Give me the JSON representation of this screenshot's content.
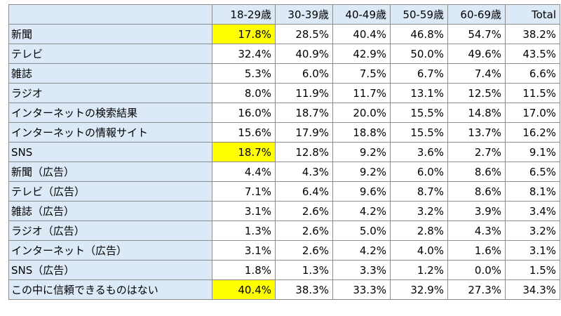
{
  "chart_data": {
    "type": "table",
    "columns": [
      "18-29歳",
      "30-39歳",
      "40-49歳",
      "50-59歳",
      "60-69歳",
      "Total"
    ],
    "highlight_color": "#ffff00",
    "header_color": "#dce9f6",
    "rows": [
      {
        "label": "新聞",
        "values": [
          "17.8%",
          "28.5%",
          "40.4%",
          "46.8%",
          "54.7%",
          "38.2%"
        ],
        "highlight": [
          0
        ]
      },
      {
        "label": "テレビ",
        "values": [
          "32.4%",
          "40.9%",
          "42.9%",
          "50.0%",
          "49.6%",
          "43.5%"
        ],
        "highlight": []
      },
      {
        "label": "雑誌",
        "values": [
          "5.3%",
          "6.0%",
          "7.5%",
          "6.7%",
          "7.4%",
          "6.6%"
        ],
        "highlight": []
      },
      {
        "label": "ラジオ",
        "values": [
          "8.0%",
          "11.9%",
          "11.7%",
          "13.1%",
          "12.5%",
          "11.5%"
        ],
        "highlight": []
      },
      {
        "label": "インターネットの検索結果",
        "values": [
          "16.0%",
          "18.7%",
          "20.0%",
          "15.5%",
          "14.8%",
          "17.0%"
        ],
        "highlight": []
      },
      {
        "label": "インターネットの情報サイト",
        "values": [
          "15.6%",
          "17.9%",
          "18.8%",
          "15.5%",
          "13.7%",
          "16.2%"
        ],
        "highlight": []
      },
      {
        "label": "SNS",
        "values": [
          "18.7%",
          "12.8%",
          "9.2%",
          "3.6%",
          "2.7%",
          "9.1%"
        ],
        "highlight": [
          0
        ]
      },
      {
        "label": "新聞（広告）",
        "values": [
          "4.4%",
          "4.3%",
          "9.2%",
          "6.0%",
          "8.6%",
          "6.5%"
        ],
        "highlight": []
      },
      {
        "label": "テレビ（広告）",
        "values": [
          "7.1%",
          "6.4%",
          "9.6%",
          "8.7%",
          "8.6%",
          "8.1%"
        ],
        "highlight": []
      },
      {
        "label": "雑誌（広告）",
        "values": [
          "3.1%",
          "2.6%",
          "4.2%",
          "3.2%",
          "3.9%",
          "3.4%"
        ],
        "highlight": []
      },
      {
        "label": "ラジオ（広告）",
        "values": [
          "1.3%",
          "2.6%",
          "5.0%",
          "2.8%",
          "4.3%",
          "3.2%"
        ],
        "highlight": []
      },
      {
        "label": "インターネット（広告）",
        "values": [
          "3.1%",
          "2.6%",
          "4.2%",
          "4.0%",
          "1.6%",
          "3.1%"
        ],
        "highlight": []
      },
      {
        "label": "SNS（広告）",
        "values": [
          "1.8%",
          "1.3%",
          "3.3%",
          "1.2%",
          "0.0%",
          "1.5%"
        ],
        "highlight": []
      },
      {
        "label": "この中に信頼できるものはない",
        "values": [
          "40.4%",
          "38.3%",
          "33.3%",
          "32.9%",
          "27.3%",
          "34.3%"
        ],
        "highlight": [
          0
        ]
      }
    ]
  }
}
